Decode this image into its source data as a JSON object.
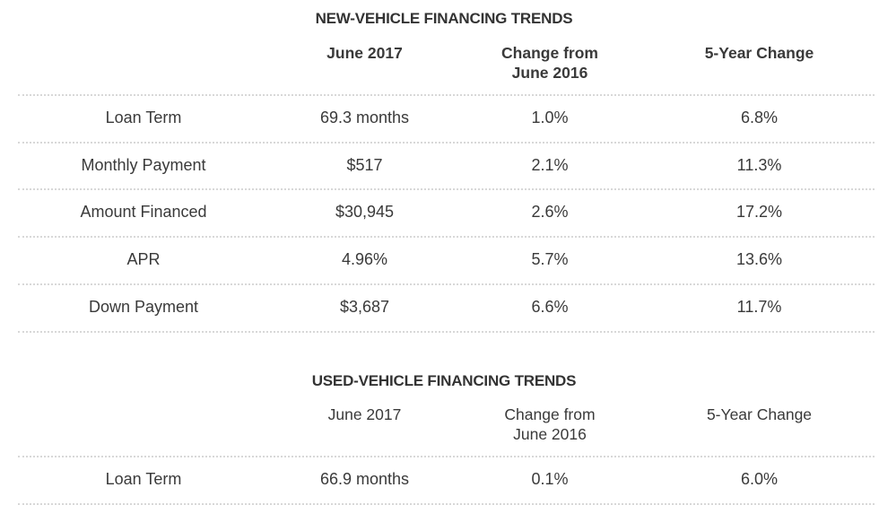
{
  "tables": [
    {
      "title": "NEW-VEHICLE FINANCING TRENDS",
      "headers": [
        "",
        "June 2017",
        "Change from\nJune 2016",
        "5-Year Change"
      ],
      "headers_lines": [
        [
          "June 2017"
        ],
        [
          "Change from",
          "June 2016"
        ],
        [
          "5-Year Change"
        ]
      ],
      "rows": [
        [
          "Loan Term",
          "69.3 months",
          "1.0%",
          "6.8%"
        ],
        [
          "Monthly Payment",
          "$517",
          "2.1%",
          "11.3%"
        ],
        [
          "Amount Financed",
          "$30,945",
          "2.6%",
          "17.2%"
        ],
        [
          "APR",
          "4.96%",
          "5.7%",
          "13.6%"
        ],
        [
          "Down Payment",
          "$3,687",
          "6.6%",
          "11.7%"
        ]
      ]
    },
    {
      "title": "USED-VEHICLE FINANCING TRENDS",
      "headers_lines": [
        [
          "June 2017"
        ],
        [
          "Change from",
          "June 2016"
        ],
        [
          "5-Year Change"
        ]
      ],
      "rows": [
        [
          "Loan Term",
          "66.9 months",
          "0.1%",
          "6.0%"
        ]
      ]
    }
  ]
}
